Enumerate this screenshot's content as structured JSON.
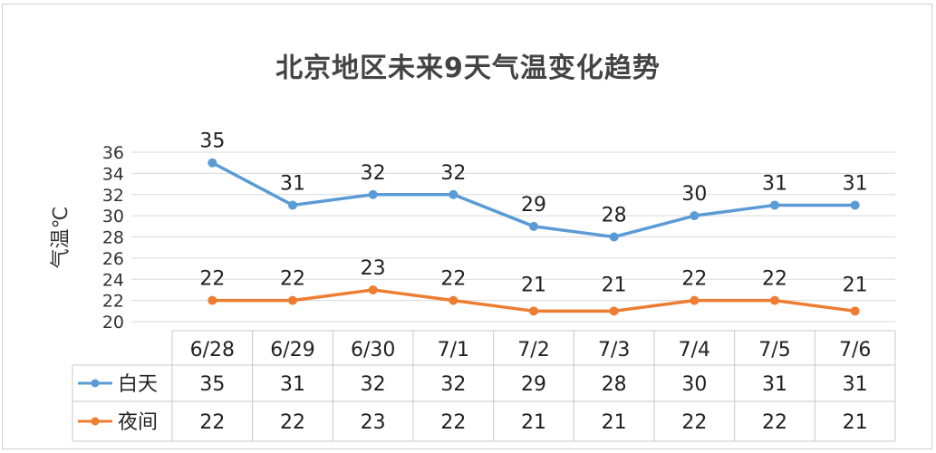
{
  "chart_data": {
    "type": "line",
    "title": "北京地区未来9天气温变化趋势",
    "ylabel": "气温℃",
    "xlabel": "",
    "categories": [
      "6/28",
      "6/29",
      "6/30",
      "7/1",
      "7/2",
      "7/3",
      "7/4",
      "7/5",
      "7/6"
    ],
    "ylim": [
      20,
      36
    ],
    "yticks": [
      20,
      22,
      24,
      26,
      28,
      30,
      32,
      34,
      36
    ],
    "grid": true,
    "legend": "data-table",
    "series": [
      {
        "name": "白天",
        "color": "#5b9bd5",
        "values": [
          35,
          31,
          32,
          32,
          29,
          28,
          30,
          31,
          31
        ]
      },
      {
        "name": "夜间",
        "color": "#ed7d31",
        "values": [
          22,
          22,
          23,
          22,
          21,
          21,
          22,
          22,
          21
        ]
      }
    ]
  }
}
